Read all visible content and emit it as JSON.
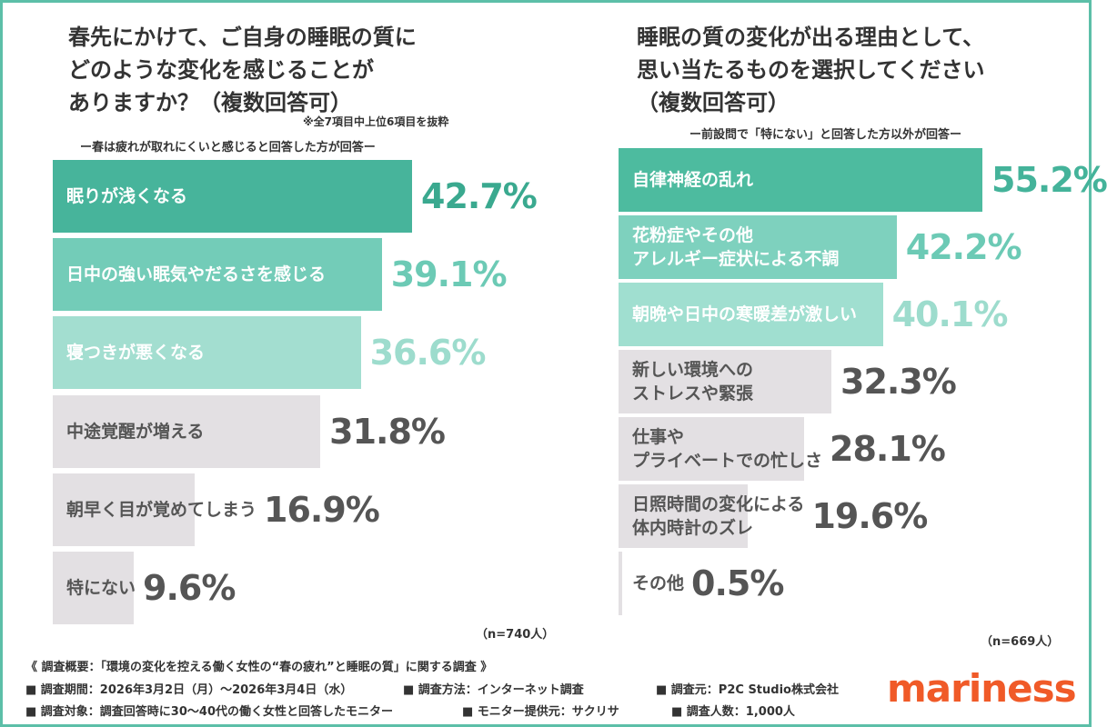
{
  "chart_data": [
    {
      "type": "bar",
      "orientation": "horizontal",
      "title": "春先にかけて、ご自身の睡眠の質に\nどのような変化を感じることが\nありますか？（複数回答可）",
      "note": "※全7項目中上位6項目を抜粋",
      "subtitle": "ー春は疲れが取れにくいと感じると回答した方が回答ー",
      "categories": [
        "眠りが浅くなる",
        "日中の強い眠気やだるさを感じる",
        "寝つきが悪くなる",
        "中途覚醒が増える",
        "朝早く目が覚めてしまう",
        "特にない"
      ],
      "values": [
        42.7,
        39.1,
        36.6,
        31.8,
        16.9,
        9.6
      ],
      "value_labels": [
        "42.7%",
        "39.1%",
        "36.6%",
        "31.8%",
        "16.9%",
        "9.6%"
      ],
      "colors": [
        "#47b49b",
        "#73ccb8",
        "#a3ded0",
        "#e3e0e3",
        "#e3e0e3",
        "#e3e0e3"
      ],
      "category_colors": [
        "#ffffff",
        "#ffffff",
        "#ffffff",
        "#555555",
        "#555555",
        "#555555"
      ],
      "label_colors": [
        "#3aa98f",
        "#6ccab5",
        "#9ddccd",
        "#555555",
        "#555555",
        "#555555"
      ],
      "sample": "（n=740人）"
    },
    {
      "type": "bar",
      "orientation": "horizontal",
      "title": "睡眠の質の変化が出る理由として、\n思い当たるものを選択してください\n（複数回答可）",
      "subtitle": "ー前設問で「特にない」と回答した方以外が回答ー",
      "categories": [
        "自律神経の乱れ",
        "花粉症やその他\nアレルギー症状による不調",
        "朝晩や日中の寒暖差が激しい",
        "新しい環境への\nストレスや緊張",
        "仕事や\nプライベートでの忙しさ",
        "日照時間の変化による\n体内時計のズレ",
        "その他"
      ],
      "values": [
        55.2,
        42.2,
        40.1,
        32.3,
        28.1,
        19.6,
        0.5
      ],
      "value_labels": [
        "55.2%",
        "42.2%",
        "40.1%",
        "32.3%",
        "28.1%",
        "19.6%",
        "0.5%"
      ],
      "colors": [
        "#4dbb9f",
        "#7ed1be",
        "#a0dfd0",
        "#e3e0e3",
        "#e3e0e3",
        "#e3e0e3",
        "#e3e0e3"
      ],
      "category_colors": [
        "#ffffff",
        "#ffffff",
        "#ffffff",
        "#555555",
        "#555555",
        "#555555",
        "#555555"
      ],
      "label_colors": [
        "#44b39a",
        "#6ccab5",
        "#9ddccd",
        "#555555",
        "#555555",
        "#555555",
        "#555555"
      ],
      "sample": "（n=669人）"
    }
  ],
  "footer": {
    "heading": "《 調査概要：「環境の変化を控える働く女性の“春の疲れ”と睡眠の質」に関する調査 》",
    "rows": [
      [
        "■ 調査期間：2026年3月2日（月）～2026年3月4日（水）",
        "■ 調査方法：インターネット調査",
        "■ 調査元：P2C Studio株式会社"
      ],
      [
        "■ 調査対象：調査回答時に30～40代の働く女性と回答したモニター",
        "■ モニター提供元：サクリサ",
        "■ 調査人数：1,000人"
      ]
    ]
  },
  "logo": "mariness"
}
